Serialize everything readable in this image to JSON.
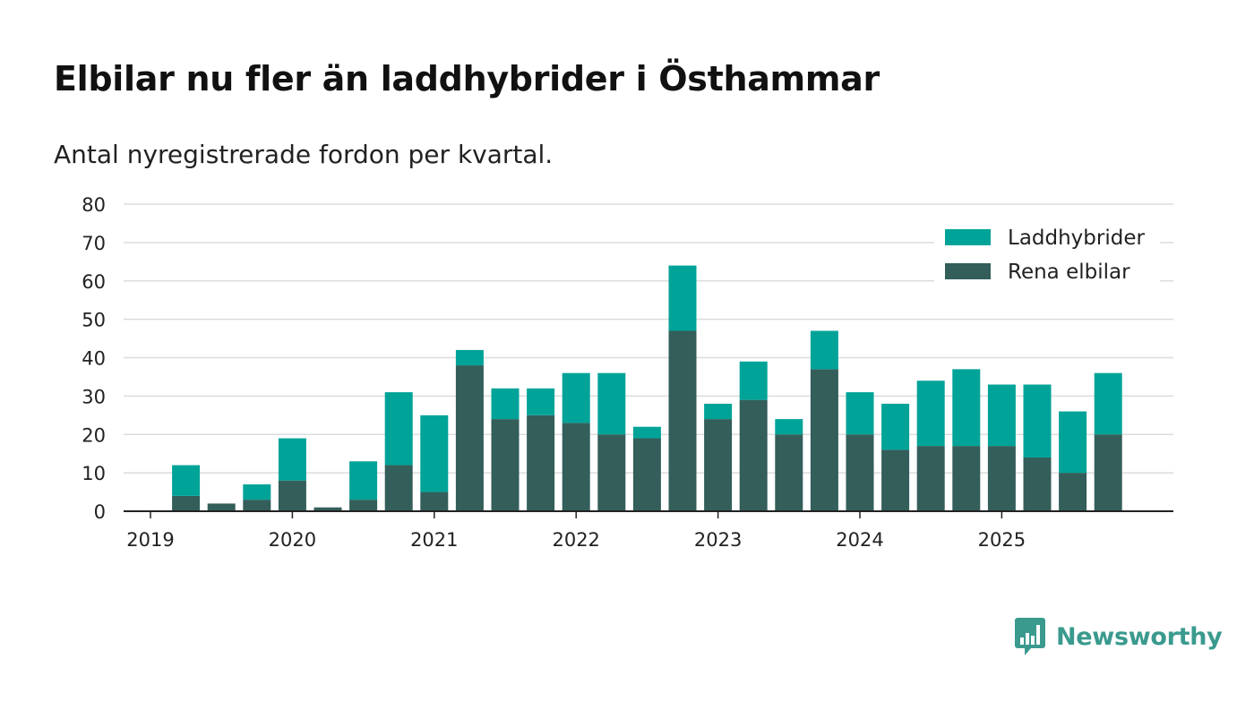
{
  "title": "Elbilar nu fler än laddhybrider i Östhammar",
  "subtitle": "Antal nyregistrerade fordon per kvartal.",
  "brand": {
    "name": "Newsworthy",
    "color": "#3a9a8e"
  },
  "colors": {
    "elbilar": "#335e5a",
    "laddhybrider": "#00a398",
    "grid": "#dcdcdc",
    "axis": "#222222"
  },
  "chart_data": {
    "type": "bar",
    "stacked": true,
    "title": "Elbilar nu fler än laddhybrider i Östhammar",
    "subtitle": "Antal nyregistrerade fordon per kvartal.",
    "xlabel": "",
    "ylabel": "",
    "ylim": [
      0,
      80
    ],
    "yticks": [
      0,
      10,
      20,
      30,
      40,
      50,
      60,
      70,
      80
    ],
    "xtick_labels": [
      "2019",
      "2020",
      "2021",
      "2022",
      "2023",
      "2024",
      "2025"
    ],
    "legend_position": "top-right",
    "categories": [
      "2019 Q1",
      "2019 Q2",
      "2019 Q3",
      "2019 Q4",
      "2020 Q1",
      "2020 Q2",
      "2020 Q3",
      "2020 Q4",
      "2021 Q1",
      "2021 Q2",
      "2021 Q3",
      "2021 Q4",
      "2022 Q1",
      "2022 Q2",
      "2022 Q3",
      "2022 Q4",
      "2023 Q1",
      "2023 Q2",
      "2023 Q3",
      "2023 Q4",
      "2024 Q1",
      "2024 Q2",
      "2024 Q3",
      "2024 Q4",
      "2025 Q1",
      "2025 Q2",
      "2025 Q3",
      "2025 Q4"
    ],
    "series": [
      {
        "name": "Rena elbilar",
        "values": [
          0,
          4,
          2,
          3,
          8,
          1,
          3,
          12,
          5,
          38,
          24,
          25,
          23,
          20,
          19,
          47,
          24,
          29,
          20,
          37,
          20,
          16,
          17,
          17,
          17,
          14,
          10,
          20
        ]
      },
      {
        "name": "Laddhybrider",
        "values": [
          0,
          8,
          0,
          4,
          11,
          0,
          10,
          19,
          20,
          4,
          8,
          7,
          13,
          16,
          3,
          17,
          4,
          10,
          4,
          10,
          11,
          12,
          17,
          20,
          16,
          19,
          16,
          16
        ]
      }
    ],
    "legend": [
      "Laddhybrider",
      "Rena elbilar"
    ]
  }
}
